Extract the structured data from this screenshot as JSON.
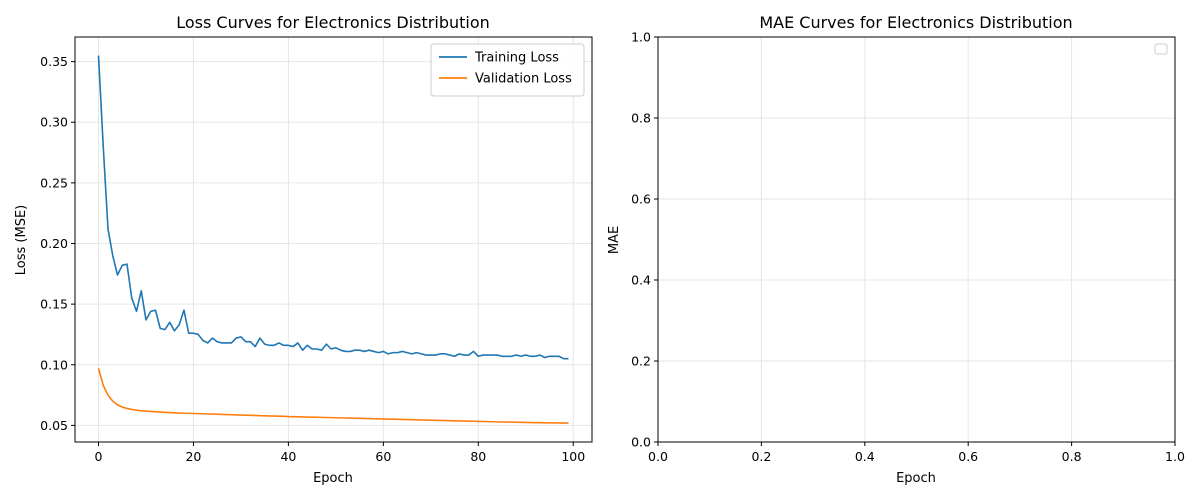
{
  "colors": {
    "training": "#1f77b4",
    "validation": "#ff7f0e",
    "grid": "#e6e6e6",
    "axis": "#000000"
  },
  "chart_data": [
    {
      "type": "line",
      "title": "Loss Curves for Electronics Distribution",
      "xlabel": "Epoch",
      "ylabel": "Loss (MSE)",
      "xlim": [
        -4.95,
        103.95
      ],
      "ylim": [
        0.0363,
        0.3703
      ],
      "xticks": [
        0,
        20,
        40,
        60,
        80,
        100
      ],
      "yticks": [
        0.05,
        0.1,
        0.15,
        0.2,
        0.25,
        0.3,
        0.35
      ],
      "xtick_labels": [
        "0",
        "20",
        "40",
        "60",
        "80",
        "100"
      ],
      "ytick_labels": [
        "0.05",
        "0.10",
        "0.15",
        "0.20",
        "0.25",
        "0.30",
        "0.35"
      ],
      "grid": true,
      "legend": "top-right",
      "series": [
        {
          "name": "Training Loss",
          "color_key": "training",
          "x_start": 0,
          "x_step": 1,
          "values": [
            0.355,
            0.28,
            0.212,
            0.19,
            0.174,
            0.182,
            0.183,
            0.155,
            0.144,
            0.161,
            0.137,
            0.144,
            0.145,
            0.13,
            0.129,
            0.135,
            0.128,
            0.133,
            0.145,
            0.126,
            0.126,
            0.125,
            0.12,
            0.118,
            0.122,
            0.119,
            0.118,
            0.118,
            0.118,
            0.122,
            0.123,
            0.119,
            0.119,
            0.115,
            0.122,
            0.117,
            0.116,
            0.116,
            0.118,
            0.116,
            0.116,
            0.115,
            0.118,
            0.112,
            0.116,
            0.113,
            0.113,
            0.112,
            0.117,
            0.113,
            0.114,
            0.112,
            0.111,
            0.111,
            0.112,
            0.112,
            0.111,
            0.112,
            0.111,
            0.11,
            0.111,
            0.109,
            0.11,
            0.11,
            0.111,
            0.11,
            0.109,
            0.11,
            0.109,
            0.108,
            0.108,
            0.108,
            0.109,
            0.109,
            0.108,
            0.107,
            0.109,
            0.108,
            0.108,
            0.111,
            0.107,
            0.108,
            0.108,
            0.108,
            0.108,
            0.107,
            0.107,
            0.107,
            0.108,
            0.107,
            0.108,
            0.107,
            0.107,
            0.108,
            0.106,
            0.107,
            0.107,
            0.107,
            0.105,
            0.105
          ]
        },
        {
          "name": "Validation Loss",
          "color_key": "validation",
          "x_start": 0,
          "x_step": 1,
          "values": [
            0.097,
            0.083,
            0.075,
            0.07,
            0.067,
            0.065,
            0.064,
            0.0632,
            0.0625,
            0.062,
            0.0618,
            0.0615,
            0.0612,
            0.061,
            0.0608,
            0.0606,
            0.0604,
            0.0602,
            0.06,
            0.0599,
            0.0598,
            0.0597,
            0.0596,
            0.0594,
            0.0593,
            0.0592,
            0.059,
            0.0589,
            0.0588,
            0.0586,
            0.0585,
            0.0584,
            0.0583,
            0.0582,
            0.058,
            0.0579,
            0.0578,
            0.0577,
            0.0576,
            0.0575,
            0.0573,
            0.0572,
            0.0571,
            0.057,
            0.0569,
            0.0568,
            0.0567,
            0.0566,
            0.0565,
            0.0564,
            0.0563,
            0.0562,
            0.0561,
            0.056,
            0.0559,
            0.0558,
            0.0557,
            0.0556,
            0.0555,
            0.0554,
            0.0553,
            0.0552,
            0.0551,
            0.055,
            0.0549,
            0.0548,
            0.0547,
            0.0546,
            0.0545,
            0.0544,
            0.0543,
            0.0542,
            0.0541,
            0.054,
            0.0539,
            0.0538,
            0.0537,
            0.0536,
            0.0535,
            0.0534,
            0.0533,
            0.0532,
            0.0531,
            0.053,
            0.0529,
            0.0528,
            0.0527,
            0.0527,
            0.0526,
            0.0525,
            0.0524,
            0.0523,
            0.0522,
            0.0522,
            0.0521,
            0.0521,
            0.052,
            0.052,
            0.0519,
            0.0519
          ]
        }
      ]
    },
    {
      "type": "line",
      "title": "MAE Curves for Electronics Distribution",
      "xlabel": "Epoch",
      "ylabel": "MAE",
      "xlim": [
        0,
        1
      ],
      "ylim": [
        0,
        1
      ],
      "xticks": [
        0,
        0.2,
        0.4,
        0.6,
        0.8,
        1.0
      ],
      "yticks": [
        0,
        0.2,
        0.4,
        0.6,
        0.8,
        1.0
      ],
      "xtick_labels": [
        "0.0",
        "0.2",
        "0.4",
        "0.6",
        "0.8",
        "1.0"
      ],
      "ytick_labels": [
        "0.0",
        "0.2",
        "0.4",
        "0.6",
        "0.8",
        "1.0"
      ],
      "grid": true,
      "legend": "top-right",
      "series": []
    }
  ]
}
